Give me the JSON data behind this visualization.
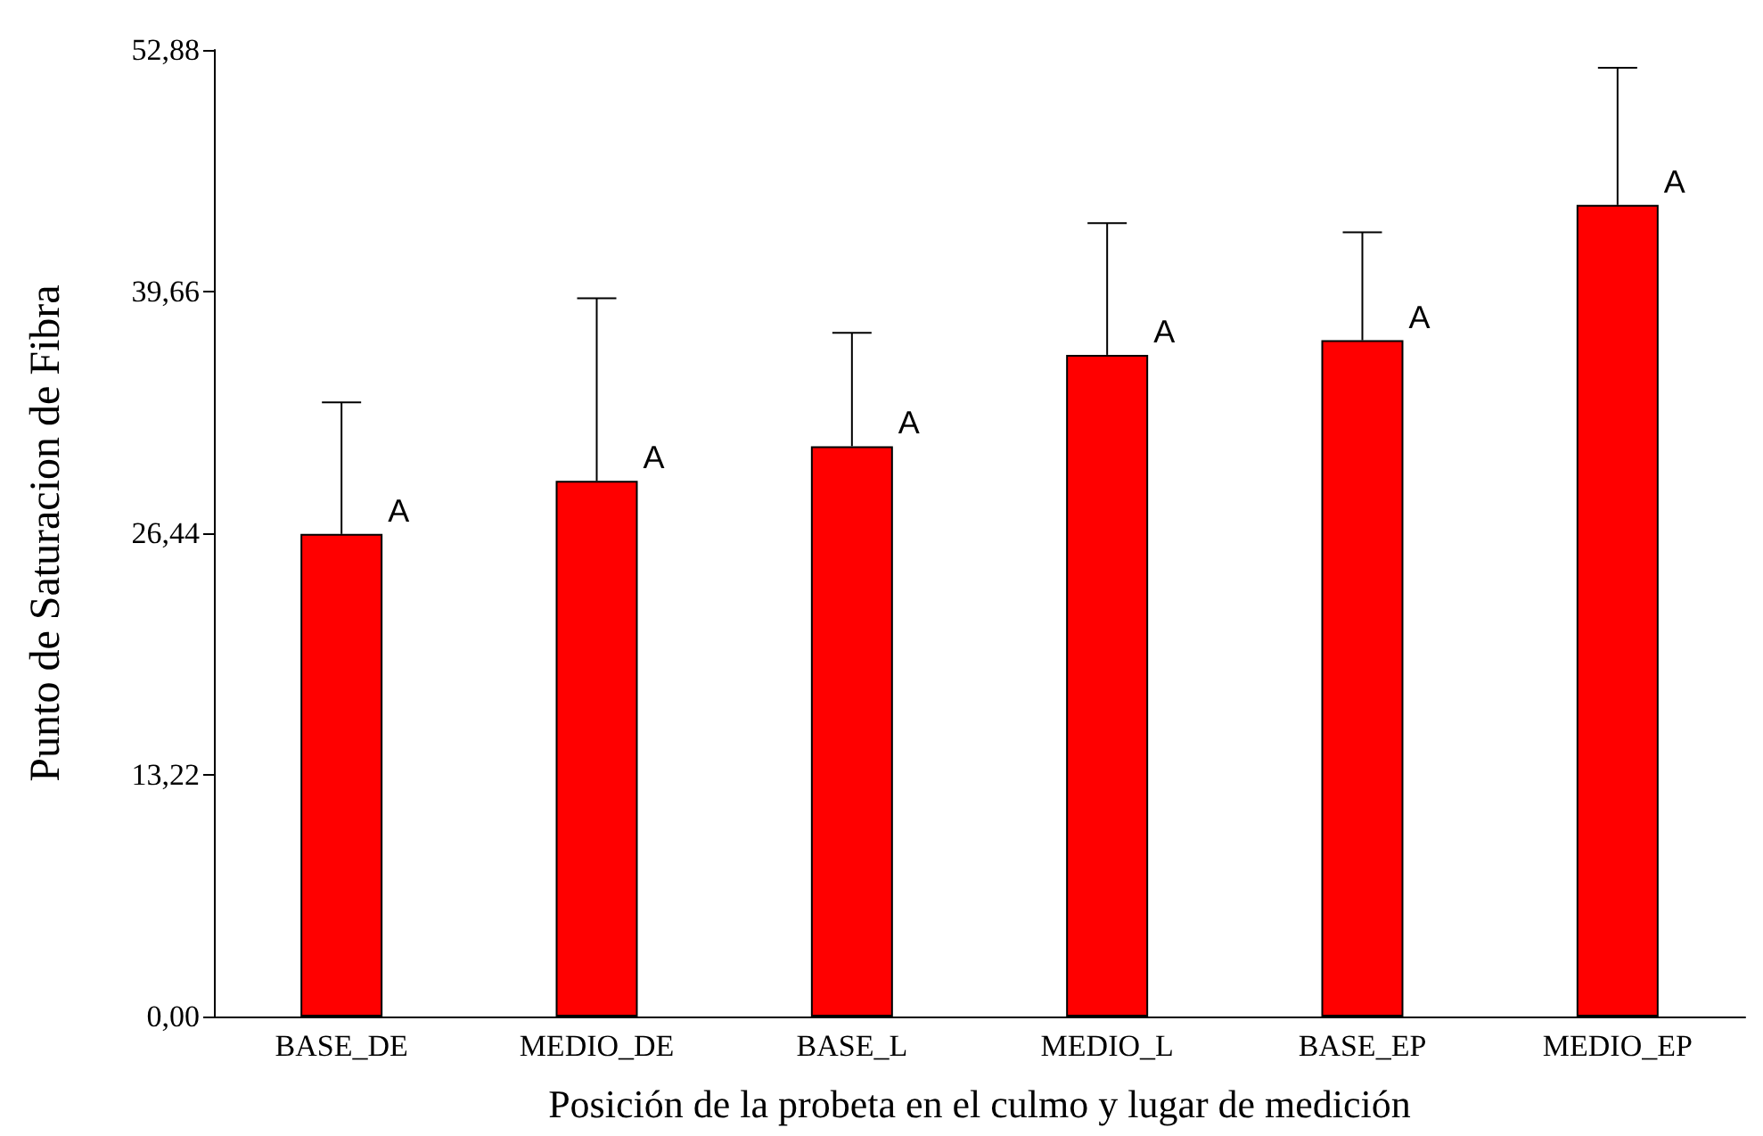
{
  "chart_data": {
    "type": "bar",
    "xlabel": "Posición de la probeta en el culmo y lugar de medición",
    "ylabel": "Punto de Saturacion de Fibra",
    "categories": [
      "BASE_DE",
      "MEDIO_DE",
      "BASE_L",
      "MEDIO_L",
      "BASE_EP",
      "MEDIO_EP"
    ],
    "values": [
      26.4,
      29.3,
      31.2,
      36.2,
      37.0,
      44.4
    ],
    "color": "#ff0000",
    "errors": [
      [
        26.4,
        33.6
      ],
      [
        29.3,
        39.3
      ],
      [
        31.2,
        37.4
      ],
      [
        36.2,
        43.4
      ],
      [
        37.0,
        42.9
      ],
      [
        44.4,
        51.9
      ]
    ],
    "ylim": [
      0,
      52.88
    ],
    "yticks": [
      {
        "value": 0,
        "label": "0,00"
      },
      {
        "value": 13.22,
        "label": "13,22"
      },
      {
        "value": 26.44,
        "label": "26,44"
      },
      {
        "value": 39.66,
        "label": "39,66"
      },
      {
        "value": 52.88,
        "label": "52,88"
      }
    ],
    "annotations": [
      {
        "text": "A",
        "x": "BASE_DE",
        "y": 26.4
      },
      {
        "text": "A",
        "x": "MEDIO_DE",
        "y": 29.3
      },
      {
        "text": "A",
        "x": "BASE_L",
        "y": 31.2
      },
      {
        "text": "A",
        "x": "MEDIO_L",
        "y": 36.2
      },
      {
        "text": "A",
        "x": "BASE_EP",
        "y": 37.0
      },
      {
        "text": "A",
        "x": "MEDIO_EP",
        "y": 44.4
      }
    ],
    "grid": false
  }
}
